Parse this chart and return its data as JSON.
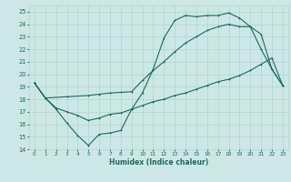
{
  "xlabel": "Humidex (Indice chaleur)",
  "xlim": [
    -0.5,
    23.5
  ],
  "ylim": [
    14,
    25.5
  ],
  "xticks": [
    0,
    1,
    2,
    3,
    4,
    5,
    6,
    7,
    8,
    9,
    10,
    11,
    12,
    13,
    14,
    15,
    16,
    17,
    18,
    19,
    20,
    21,
    22,
    23
  ],
  "yticks": [
    14,
    15,
    16,
    17,
    18,
    19,
    20,
    21,
    22,
    23,
    24,
    25
  ],
  "bg_color": "#cde8e4",
  "grid_color": "#afd4ce",
  "line_color": "#1a6b5a",
  "line1_x": [
    0,
    1,
    2,
    3,
    4,
    5,
    6,
    7,
    8,
    9,
    10,
    11,
    12,
    13,
    14,
    15,
    16,
    17,
    18,
    19,
    20,
    21,
    22,
    23
  ],
  "line1_y": [
    19.3,
    18.1,
    17.2,
    16.1,
    15.1,
    14.3,
    15.2,
    15.3,
    15.5,
    17.2,
    18.5,
    20.4,
    22.9,
    24.3,
    24.7,
    24.6,
    24.7,
    24.7,
    24.9,
    24.5,
    23.8,
    23.2,
    20.4,
    19.1
  ],
  "line2_x": [
    0,
    1,
    3,
    5,
    6,
    7,
    8,
    9,
    10,
    11,
    12,
    13,
    14,
    15,
    16,
    17,
    18,
    19,
    20,
    21,
    22,
    23
  ],
  "line2_y": [
    19.3,
    18.1,
    18.2,
    18.3,
    18.4,
    18.5,
    18.55,
    18.6,
    19.5,
    20.3,
    21.0,
    21.8,
    22.5,
    23.0,
    23.5,
    23.8,
    24.0,
    23.8,
    23.8,
    22.0,
    20.4,
    19.1
  ],
  "line3_x": [
    0,
    1,
    2,
    3,
    4,
    5,
    6,
    7,
    8,
    9,
    10,
    11,
    12,
    13,
    14,
    15,
    16,
    17,
    18,
    19,
    20,
    21,
    22,
    23
  ],
  "line3_y": [
    19.3,
    18.1,
    17.3,
    17.0,
    16.7,
    16.3,
    16.5,
    16.8,
    16.9,
    17.2,
    17.5,
    17.8,
    18.0,
    18.3,
    18.5,
    18.8,
    19.1,
    19.4,
    19.6,
    19.9,
    20.3,
    20.8,
    21.3,
    19.1
  ]
}
